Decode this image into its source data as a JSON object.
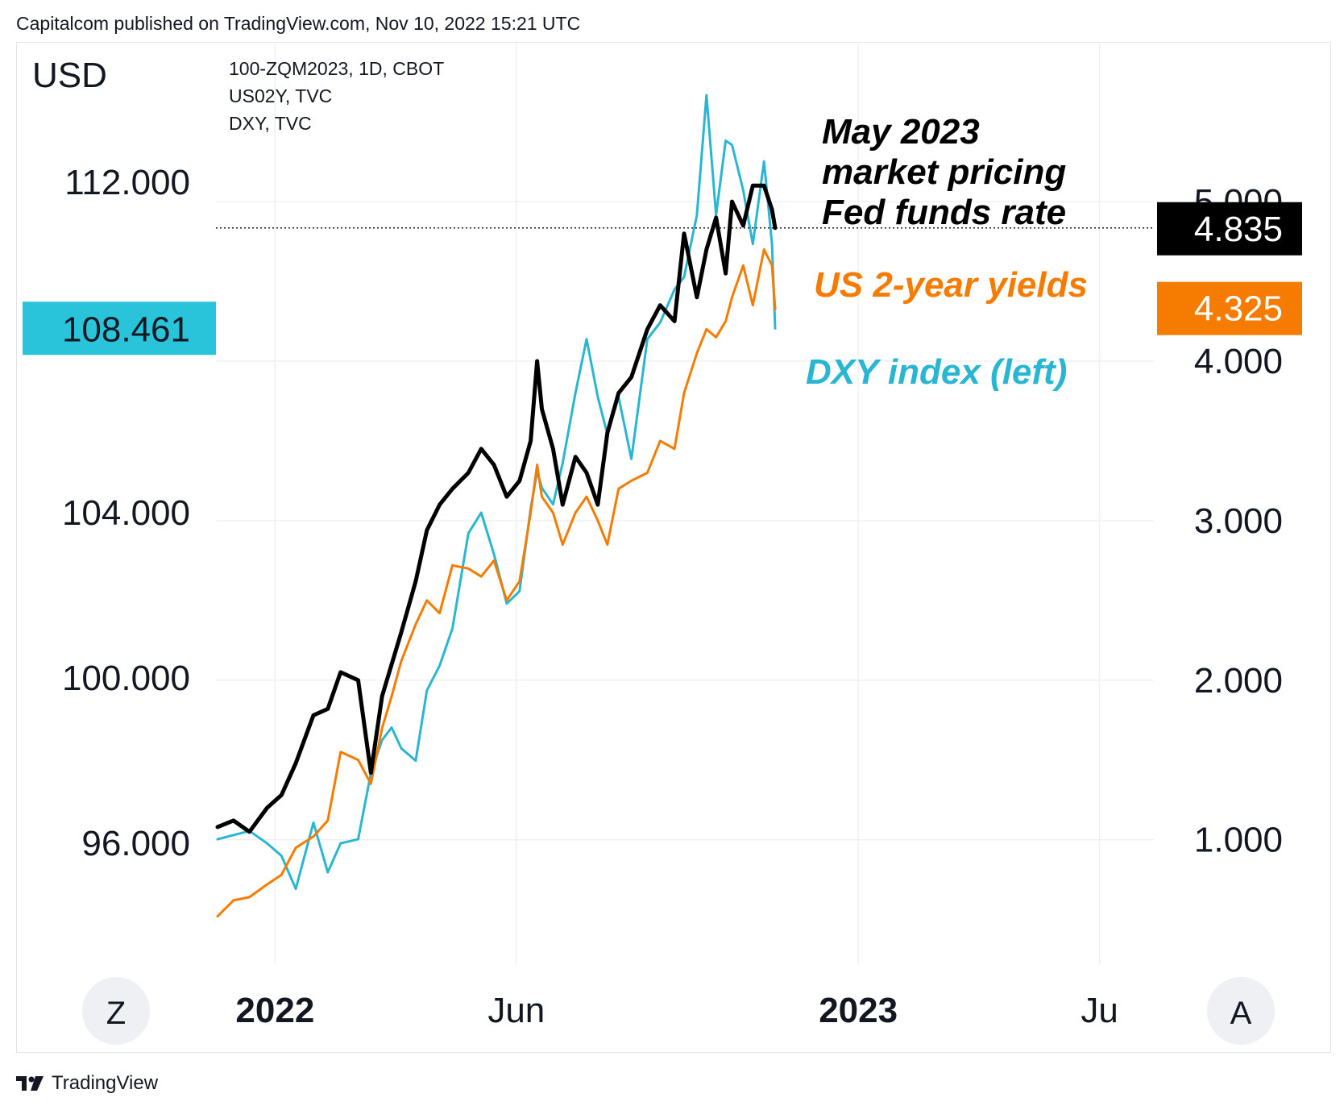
{
  "header": {
    "published": "Capitalcom published on TradingView.com, Nov 10, 2022 15:21 UTC"
  },
  "footer": {
    "brand": "TradingView"
  },
  "chart_data": {
    "type": "line",
    "left_axis": {
      "currency": "USD",
      "ticks": [
        96,
        100,
        104,
        112
      ],
      "tick_labels": [
        "96.000",
        "100.000",
        "104.000",
        "112.000"
      ],
      "range": [
        93.0,
        115.0
      ]
    },
    "right_axis": {
      "ticks": [
        1,
        2,
        3,
        4,
        5
      ],
      "tick_labels": [
        "1.000",
        "2.000",
        "3.000",
        "4.000",
        "5.000"
      ],
      "range": [
        0.2,
        5.9
      ]
    },
    "x_axis": {
      "range": [
        "2021-11-25",
        "2023-07-05"
      ],
      "ticks": [
        {
          "date": "2022-01-01",
          "label": "2022",
          "bold": true
        },
        {
          "date": "2022-06-01",
          "label": "Jun",
          "bold": false
        },
        {
          "date": "2023-01-01",
          "label": "2023",
          "bold": true
        },
        {
          "date": "2023-06-01",
          "label": "Ju",
          "bold": false
        }
      ]
    },
    "legend_lines": [
      "100-ZQM2023, 1D, CBOT",
      "US02Y, TVC",
      "DXY, TVC"
    ],
    "buttons": {
      "left": "Z",
      "right": "A"
    },
    "series": [
      {
        "name": "100-ZQM2023, 1D, CBOT",
        "axis": "right",
        "color": "#000000",
        "last_value": 4.835,
        "last_label": "4.835",
        "annotation": [
          "May 2023",
          "market pricing",
          "Fed funds rate"
        ],
        "x": [
          "2021-11-26",
          "2021-12-06",
          "2021-12-16",
          "2021-12-27",
          "2022-01-05",
          "2022-01-14",
          "2022-01-25",
          "2022-02-03",
          "2022-02-11",
          "2022-02-22",
          "2022-03-02",
          "2022-03-09",
          "2022-03-15",
          "2022-03-21",
          "2022-03-30",
          "2022-04-06",
          "2022-04-14",
          "2022-04-22",
          "2022-05-02",
          "2022-05-10",
          "2022-05-18",
          "2022-05-26",
          "2022-06-03",
          "2022-06-10",
          "2022-06-14",
          "2022-06-17",
          "2022-06-24",
          "2022-06-30",
          "2022-07-08",
          "2022-07-15",
          "2022-07-22",
          "2022-07-28",
          "2022-08-04",
          "2022-08-12",
          "2022-08-22",
          "2022-08-30",
          "2022-09-08",
          "2022-09-14",
          "2022-09-22",
          "2022-09-28",
          "2022-10-04",
          "2022-10-10",
          "2022-10-14",
          "2022-10-21",
          "2022-10-27",
          "2022-11-03",
          "2022-11-08",
          "2022-11-10"
        ],
        "y": [
          1.08,
          1.12,
          1.05,
          1.2,
          1.28,
          1.48,
          1.78,
          1.82,
          2.05,
          2.0,
          1.42,
          1.9,
          2.1,
          2.3,
          2.62,
          2.94,
          3.1,
          3.2,
          3.3,
          3.45,
          3.35,
          3.15,
          3.25,
          3.5,
          4.0,
          3.7,
          3.45,
          3.1,
          3.4,
          3.3,
          3.1,
          3.55,
          3.8,
          3.9,
          4.2,
          4.35,
          4.25,
          4.8,
          4.4,
          4.7,
          4.9,
          4.55,
          5.0,
          4.85,
          5.1,
          5.1,
          4.95,
          4.835
        ]
      },
      {
        "name": "US02Y, TVC",
        "axis": "right",
        "color": "#f57c00",
        "last_value": 4.325,
        "last_label": "4.325",
        "annotation": [
          "US 2-year yields"
        ],
        "x": [
          "2021-11-26",
          "2021-12-06",
          "2021-12-16",
          "2021-12-27",
          "2022-01-05",
          "2022-01-14",
          "2022-01-25",
          "2022-02-03",
          "2022-02-11",
          "2022-02-22",
          "2022-03-02",
          "2022-03-09",
          "2022-03-15",
          "2022-03-21",
          "2022-03-30",
          "2022-04-06",
          "2022-04-14",
          "2022-04-22",
          "2022-05-02",
          "2022-05-10",
          "2022-05-18",
          "2022-05-26",
          "2022-06-03",
          "2022-06-10",
          "2022-06-14",
          "2022-06-17",
          "2022-06-24",
          "2022-06-30",
          "2022-07-08",
          "2022-07-15",
          "2022-07-22",
          "2022-07-28",
          "2022-08-04",
          "2022-08-12",
          "2022-08-22",
          "2022-08-30",
          "2022-09-08",
          "2022-09-14",
          "2022-09-22",
          "2022-09-28",
          "2022-10-04",
          "2022-10-10",
          "2022-10-14",
          "2022-10-21",
          "2022-10-27",
          "2022-11-03",
          "2022-11-08",
          "2022-11-10"
        ],
        "y": [
          0.52,
          0.62,
          0.64,
          0.72,
          0.78,
          0.95,
          1.02,
          1.12,
          1.55,
          1.5,
          1.35,
          1.7,
          1.9,
          2.12,
          2.35,
          2.5,
          2.42,
          2.72,
          2.7,
          2.65,
          2.75,
          2.5,
          2.62,
          3.05,
          3.35,
          3.15,
          3.05,
          2.85,
          3.05,
          3.15,
          3.0,
          2.85,
          3.2,
          3.25,
          3.3,
          3.5,
          3.45,
          3.8,
          4.05,
          4.2,
          4.15,
          4.25,
          4.4,
          4.6,
          4.35,
          4.7,
          4.6,
          4.325
        ]
      },
      {
        "name": "DXY, TVC",
        "axis": "left",
        "color": "#29b6d2",
        "last_value": 108.461,
        "last_label": "108.461",
        "annotation": [
          "DXY index (left)"
        ],
        "x": [
          "2021-11-26",
          "2021-12-06",
          "2021-12-16",
          "2021-12-27",
          "2022-01-05",
          "2022-01-14",
          "2022-01-25",
          "2022-02-03",
          "2022-02-11",
          "2022-02-22",
          "2022-03-02",
          "2022-03-09",
          "2022-03-15",
          "2022-03-21",
          "2022-03-30",
          "2022-04-06",
          "2022-04-14",
          "2022-04-22",
          "2022-05-02",
          "2022-05-10",
          "2022-05-18",
          "2022-05-26",
          "2022-06-03",
          "2022-06-10",
          "2022-06-14",
          "2022-06-17",
          "2022-06-24",
          "2022-06-30",
          "2022-07-08",
          "2022-07-15",
          "2022-07-22",
          "2022-07-28",
          "2022-08-04",
          "2022-08-12",
          "2022-08-22",
          "2022-08-30",
          "2022-09-08",
          "2022-09-14",
          "2022-09-22",
          "2022-09-28",
          "2022-10-04",
          "2022-10-10",
          "2022-10-14",
          "2022-10-21",
          "2022-10-27",
          "2022-11-03",
          "2022-11-08",
          "2022-11-10"
        ],
        "y": [
          96.1,
          96.2,
          96.3,
          96.0,
          95.7,
          94.9,
          96.5,
          95.3,
          96.0,
          96.1,
          97.7,
          98.5,
          98.8,
          98.3,
          98.0,
          99.7,
          100.3,
          101.2,
          103.5,
          104.0,
          103.0,
          101.8,
          102.1,
          104.1,
          105.0,
          104.6,
          104.2,
          105.2,
          106.9,
          108.2,
          106.8,
          105.9,
          106.8,
          105.3,
          108.2,
          108.6,
          109.4,
          109.7,
          111.2,
          114.1,
          111.2,
          113.0,
          112.9,
          111.8,
          110.5,
          112.5,
          110.5,
          108.461
        ]
      }
    ]
  }
}
